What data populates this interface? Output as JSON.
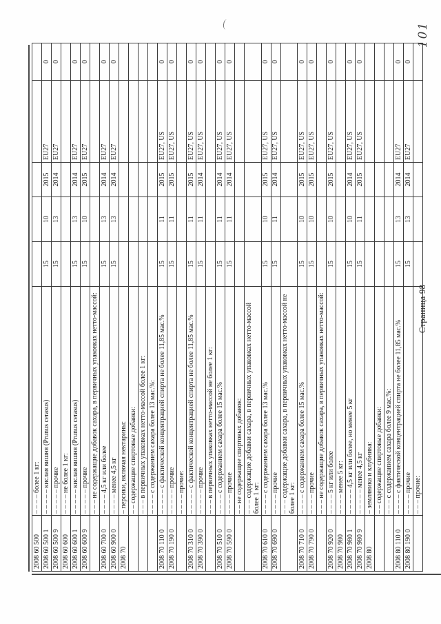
{
  "document": {
    "page_footer": "Страница 98",
    "handwritten_mark": "101",
    "table": {
      "rows": [
        [
          "2008 60 500",
          "– – – – более 1 кг:",
          "",
          "",
          "",
          "",
          ""
        ],
        [
          "2008 60 500 1",
          "– – – – – кислая вишня (Prunus cerasus)",
          "15",
          "10",
          "2015",
          "EU27",
          "0"
        ],
        [
          "2008 60 500 9",
          "– – – – – прочие",
          "15",
          "13",
          "2014",
          "EU27",
          "0"
        ],
        [
          "2008 60 600",
          "– – – – не более 1 кг:",
          "",
          "",
          "",
          "",
          ""
        ],
        [
          "2008 60 600 1",
          "– – – – – кислая вишня (Prunus cerasus)",
          "15",
          "13",
          "2014",
          "EU27",
          "0"
        ],
        [
          "2008 60 600 9",
          "– – – – – прочие",
          "15",
          "10",
          "2015",
          "EU27",
          "0"
        ],
        [
          "",
          "– – – не содержащие добавок сахара, в первичных упаковках нетто-массой:",
          "",
          "",
          "",
          "",
          ""
        ],
        [
          "2008 60 700 0",
          "– – – – 4,5 кг или более",
          "15",
          "13",
          "2014",
          "EU27",
          "0"
        ],
        [
          "2008 60 900 0",
          "– – – – менее 4,5 кг",
          "15",
          "13",
          "2014",
          "EU27",
          "0"
        ],
        [
          "2008 70",
          "– персики, включая нектарины:",
          "",
          "",
          "",
          "",
          ""
        ],
        [
          "",
          "– – содержащие спиртовые добавки:",
          "",
          "",
          "",
          "",
          ""
        ],
        [
          "",
          "– – – в первичных упаковках нетто-массой более 1 кг:",
          "",
          "",
          "",
          "",
          ""
        ],
        [
          "",
          "– – – – с содержанием сахара более 13 мас.%:",
          "",
          "",
          "",
          "",
          ""
        ],
        [
          "2008 70 110 0",
          "– – – – – с фактической концентрацией спирта не более 11,85 мас.%",
          "15",
          "11",
          "2015",
          "EU27, US",
          "0"
        ],
        [
          "2008 70 190 0",
          "– – – – – прочие",
          "15",
          "11",
          "2015",
          "EU27, US",
          "0"
        ],
        [
          "",
          "– – – – прочие:",
          "",
          "",
          "",
          "",
          ""
        ],
        [
          "2008 70 310 0",
          "– – – – – с фактической концентрацией спирта не более 11,85 мас.%",
          "15",
          "11",
          "2015",
          "EU27, US",
          "0"
        ],
        [
          "2008 70 390 0",
          "– – – – – прочие",
          "15",
          "11",
          "2014",
          "EU27, US",
          "0"
        ],
        [
          "",
          "– – – в первичных упаковках нетто-массой не более 1 кг:",
          "",
          "",
          "",
          "",
          ""
        ],
        [
          "2008 70 510 0",
          "– – – – с содержанием сахара более 15 мас.%",
          "15",
          "11",
          "2014",
          "EU27, US",
          "0"
        ],
        [
          "2008 70 590 0",
          "– – – – прочие",
          "15",
          "11",
          "2014",
          "EU27, US",
          "0"
        ],
        [
          "",
          "– – не содержащие спиртовых добавок:",
          "",
          "",
          "",
          "",
          ""
        ],
        [
          "",
          "– – – содержащие добавки сахара, в первичных упаковках нетто-массой более 1 кг:",
          "",
          "",
          "",
          "",
          ""
        ],
        [
          "2008 70 610 0",
          "– – – – с содержанием сахара более 13 мас.%",
          "15",
          "10",
          "2015",
          "EU27, US",
          "0"
        ],
        [
          "2008 70 690 0",
          "– – – – прочие",
          "15",
          "11",
          "2014",
          "EU27, US",
          "0"
        ],
        [
          "",
          "– – – содержащие добавки сахара, в первичных упаковках нетто-массой не более 1 кг:",
          "",
          "",
          "",
          "",
          ""
        ],
        [
          "2008 70 710 0",
          "– – – – с содержанием сахара более 15 мас.%",
          "15",
          "10",
          "2015",
          "EU27, US",
          "0"
        ],
        [
          "2008 70 790 0",
          "– – – – прочие",
          "15",
          "10",
          "2015",
          "EU27, US",
          "0"
        ],
        [
          "",
          "– – – не содержащие добавок сахара, в первичных упаковках нетто-массой:",
          "",
          "",
          "",
          "",
          ""
        ],
        [
          "2008 70 920 0",
          "– – – – 5 кг или более",
          "15",
          "10",
          "2015",
          "EU27, US",
          "0"
        ],
        [
          "2008 70 980",
          "– – – – менее 5 кг:",
          "",
          "",
          "",
          "",
          ""
        ],
        [
          "2008 70 980 1",
          "– – – – – 4,5 кг или более, но менее 5 кг",
          "15",
          "10",
          "2014",
          "EU27, US",
          "0"
        ],
        [
          "2008 70 980 9",
          "– – – – – менее 4,5 кг",
          "15",
          "11",
          "2015",
          "EU27, US",
          "0"
        ],
        [
          "2008 80",
          "– земляника и клубника:",
          "",
          "",
          "",
          "",
          ""
        ],
        [
          "",
          "– – содержащие спиртовые добавки:",
          "",
          "",
          "",
          "",
          ""
        ],
        [
          "",
          "– – – с содержанием сахара более 9 мас.%:",
          "",
          "",
          "",
          "",
          ""
        ],
        [
          "2008 80 110 0",
          "– – – – с фактической концентрацией спирта не более 11,85 мас.%",
          "15",
          "13",
          "2014",
          "EU27",
          "0"
        ],
        [
          "2008 80 190 0",
          "– – – – прочие",
          "15",
          "13",
          "2014",
          "EU27",
          "0"
        ],
        [
          "",
          "– – – прочие:",
          "",
          "",
          "",
          "",
          ""
        ]
      ]
    }
  }
}
